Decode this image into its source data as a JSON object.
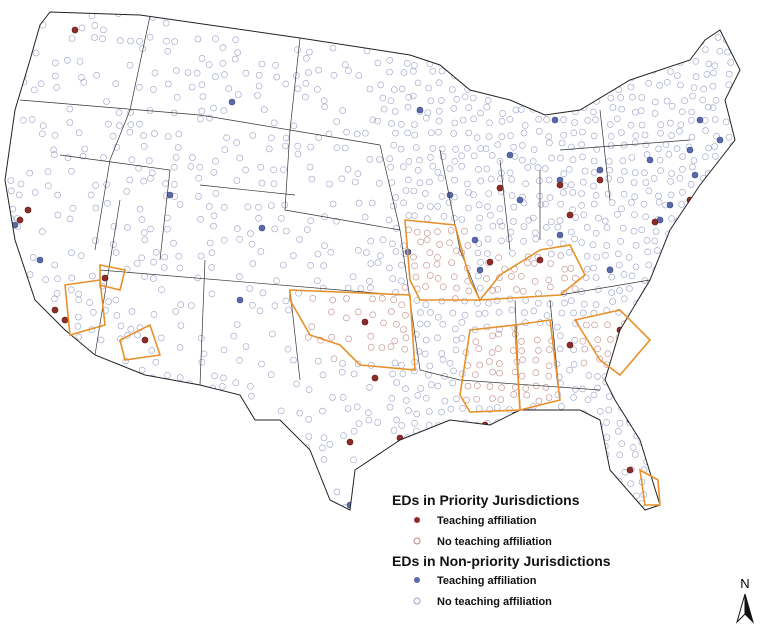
{
  "legend": {
    "priority": {
      "title": "EDs in Priority Jurisdictions",
      "items": [
        "Teaching affiliation",
        "No teaching affiliation"
      ]
    },
    "nonpriority": {
      "title": "EDs in Non-priority Jurisdictions",
      "items": [
        "Teaching affiliation",
        "No teaching affiliation"
      ]
    }
  },
  "north_arrow": {
    "label": "N"
  }
}
